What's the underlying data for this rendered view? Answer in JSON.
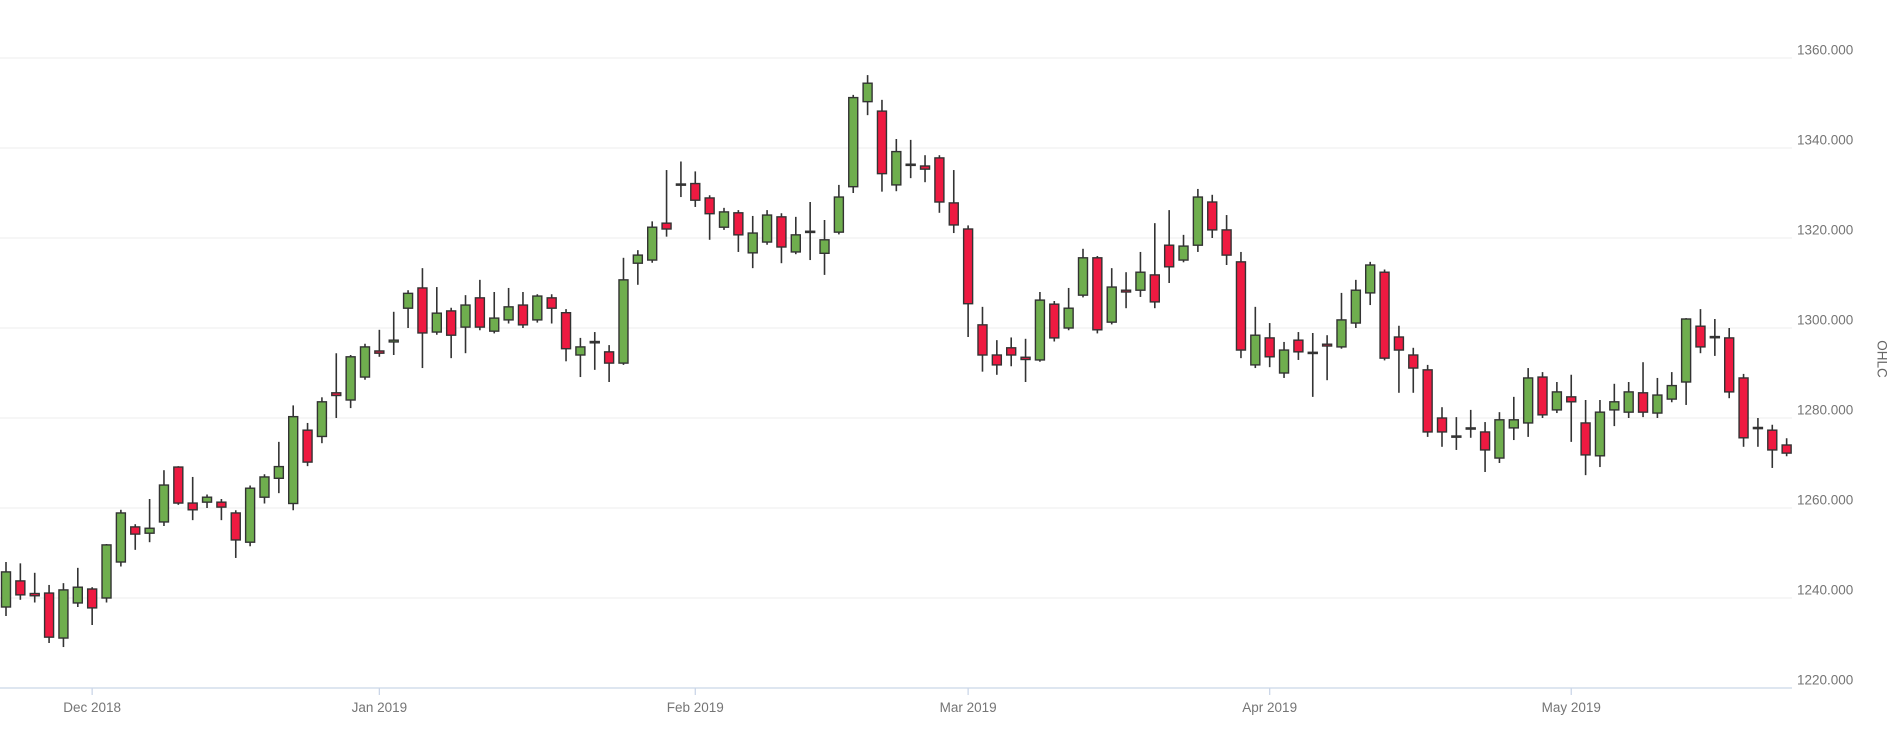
{
  "page": {
    "background": "#FFFFFF"
  },
  "chart": {
    "colors": {
      "up": "#6FAE4E",
      "down": "#EE1A41",
      "outline": "#333333",
      "grid": "#ECECEC",
      "axis_line": "#CBD6E8",
      "tick_text": "#757575",
      "axis_title_text": "#666666",
      "background": "#FFFFFF"
    }
  },
  "chart_data": {
    "type": "candlestick",
    "title": "",
    "xlabel": "",
    "ylabel": "OHLC",
    "grid": "horizontal-only",
    "legend": "none",
    "y_axis": {
      "side": "right",
      "min": 1220,
      "max": 1360,
      "tick_step": 20,
      "tick_labels": [
        "1220.000",
        "1240.000",
        "1260.000",
        "1280.000",
        "1300.000",
        "1320.000",
        "1340.000",
        "1360.000"
      ]
    },
    "x_axis": {
      "tick_labels": [
        "Dec 2018",
        "Jan 2019",
        "Feb 2019",
        "Mar 2019",
        "Apr 2019",
        "May 2019"
      ],
      "tick_candle_indices": [
        6,
        26,
        48,
        67,
        88,
        109
      ]
    },
    "candle_fields": [
      "date",
      "open",
      "high",
      "low",
      "close"
    ],
    "candles": [
      [
        "2018-11-23",
        1238.0,
        1248.0,
        1236.0,
        1245.8
      ],
      [
        "2018-11-26",
        1243.8,
        1247.7,
        1239.6,
        1240.7
      ],
      [
        "2018-11-27",
        1241.0,
        1245.6,
        1239.0,
        1240.5
      ],
      [
        "2018-11-28",
        1241.1,
        1242.9,
        1230.0,
        1231.3
      ],
      [
        "2018-11-29",
        1231.1,
        1243.3,
        1229.1,
        1241.8
      ],
      [
        "2018-11-30",
        1238.9,
        1246.7,
        1238.0,
        1242.4
      ],
      [
        "2018-12-03",
        1242.0,
        1242.4,
        1234.0,
        1237.8
      ],
      [
        "2018-12-04",
        1240.0,
        1252.0,
        1239.0,
        1251.8
      ],
      [
        "2018-12-05",
        1248.0,
        1259.6,
        1247.0,
        1258.9
      ],
      [
        "2018-12-06",
        1255.8,
        1256.4,
        1250.7,
        1254.2
      ],
      [
        "2018-12-07",
        1254.4,
        1262.0,
        1252.4,
        1255.5
      ],
      [
        "2018-12-10",
        1256.9,
        1268.4,
        1256.0,
        1265.1
      ],
      [
        "2018-12-11",
        1269.1,
        1269.3,
        1260.7,
        1261.1
      ],
      [
        "2018-12-12",
        1261.1,
        1266.9,
        1257.3,
        1259.6
      ],
      [
        "2018-12-13",
        1261.3,
        1263.0,
        1260.0,
        1262.4
      ],
      [
        "2018-12-14",
        1261.3,
        1262.0,
        1257.3,
        1260.2
      ],
      [
        "2018-12-17",
        1258.9,
        1259.5,
        1248.9,
        1252.9
      ],
      [
        "2018-12-18",
        1252.4,
        1265.0,
        1251.5,
        1264.4
      ],
      [
        "2018-12-19",
        1262.4,
        1267.5,
        1261.0,
        1266.9
      ],
      [
        "2018-12-20",
        1266.6,
        1274.7,
        1263.3,
        1269.2
      ],
      [
        "2018-12-21",
        1261.0,
        1282.8,
        1259.5,
        1280.3
      ],
      [
        "2018-12-24",
        1277.3,
        1278.9,
        1269.3,
        1270.2
      ],
      [
        "2018-12-26",
        1275.9,
        1284.6,
        1274.4,
        1283.6
      ],
      [
        "2018-12-27",
        1285.6,
        1294.4,
        1280.0,
        1285.0
      ],
      [
        "2018-12-28",
        1284.0,
        1294.0,
        1282.2,
        1293.6
      ],
      [
        "2018-12-31",
        1289.1,
        1296.5,
        1288.5,
        1295.8
      ],
      [
        "2019-01-02",
        1294.9,
        1299.6,
        1293.6,
        1294.4
      ],
      [
        "2019-01-03",
        1296.9,
        1303.6,
        1294.0,
        1297.3
      ],
      [
        "2019-01-04",
        1304.4,
        1308.4,
        1300.0,
        1307.7
      ],
      [
        "2019-01-07",
        1308.9,
        1313.3,
        1291.1,
        1298.9
      ],
      [
        "2019-01-08",
        1299.1,
        1309.1,
        1298.5,
        1303.3
      ],
      [
        "2019-01-09",
        1303.8,
        1304.5,
        1293.3,
        1298.4
      ],
      [
        "2019-01-10",
        1300.2,
        1307.3,
        1294.4,
        1305.1
      ],
      [
        "2019-01-11",
        1306.7,
        1310.7,
        1299.5,
        1300.2
      ],
      [
        "2019-01-14",
        1299.3,
        1308.0,
        1298.8,
        1302.2
      ],
      [
        "2019-01-15",
        1301.8,
        1308.9,
        1301.0,
        1304.7
      ],
      [
        "2019-01-16",
        1305.1,
        1308.0,
        1300.0,
        1300.7
      ],
      [
        "2019-01-17",
        1301.8,
        1307.5,
        1301.2,
        1307.1
      ],
      [
        "2019-01-18",
        1306.7,
        1307.5,
        1301.0,
        1304.4
      ],
      [
        "2019-01-21",
        1303.4,
        1304.2,
        1292.6,
        1295.4
      ],
      [
        "2019-01-22",
        1294.0,
        1297.8,
        1289.1,
        1295.8
      ],
      [
        "2019-01-23",
        1297.0,
        1299.1,
        1290.7,
        1296.7
      ],
      [
        "2019-01-24",
        1294.7,
        1296.2,
        1288.0,
        1292.2
      ],
      [
        "2019-01-25",
        1292.2,
        1315.6,
        1291.8,
        1310.7
      ],
      [
        "2019-01-28",
        1314.4,
        1317.3,
        1309.6,
        1316.2
      ],
      [
        "2019-01-29",
        1315.1,
        1323.7,
        1314.5,
        1322.4
      ],
      [
        "2019-01-30",
        1323.3,
        1335.1,
        1320.3,
        1322.0
      ],
      [
        "2019-01-31",
        1332.0,
        1337.0,
        1329.1,
        1331.8
      ],
      [
        "2019-02-01",
        1332.1,
        1334.8,
        1326.9,
        1328.4
      ],
      [
        "2019-02-04",
        1328.9,
        1329.5,
        1319.6,
        1325.4
      ],
      [
        "2019-02-05",
        1322.4,
        1326.7,
        1321.8,
        1325.8
      ],
      [
        "2019-02-06",
        1325.6,
        1326.2,
        1316.9,
        1320.7
      ],
      [
        "2019-02-07",
        1316.7,
        1324.9,
        1313.3,
        1321.1
      ],
      [
        "2019-02-08",
        1319.1,
        1326.2,
        1318.5,
        1325.1
      ],
      [
        "2019-02-11",
        1324.7,
        1325.5,
        1314.4,
        1318.0
      ],
      [
        "2019-02-12",
        1316.9,
        1324.7,
        1316.4,
        1320.7
      ],
      [
        "2019-02-13",
        1321.5,
        1328.0,
        1315.1,
        1321.3
      ],
      [
        "2019-02-14",
        1316.6,
        1324.0,
        1311.8,
        1319.6
      ],
      [
        "2019-02-15",
        1321.3,
        1331.8,
        1320.8,
        1329.1
      ],
      [
        "2019-02-19",
        1331.4,
        1351.8,
        1330.0,
        1351.2
      ],
      [
        "2019-02-20",
        1350.3,
        1356.2,
        1347.3,
        1354.4
      ],
      [
        "2019-02-21",
        1348.2,
        1350.7,
        1330.3,
        1334.3
      ],
      [
        "2019-02-22",
        1331.8,
        1342.0,
        1330.4,
        1339.2
      ],
      [
        "2019-02-25",
        1336.4,
        1341.8,
        1333.3,
        1336.2
      ],
      [
        "2019-02-26",
        1336.0,
        1338.4,
        1332.4,
        1335.3
      ],
      [
        "2019-02-27",
        1337.8,
        1338.4,
        1325.6,
        1328.0
      ],
      [
        "2019-02-28",
        1327.8,
        1335.1,
        1321.1,
        1322.9
      ],
      [
        "2019-03-01",
        1322.0,
        1322.8,
        1298.0,
        1305.4
      ],
      [
        "2019-03-04",
        1300.7,
        1304.7,
        1290.3,
        1294.0
      ],
      [
        "2019-03-05",
        1294.0,
        1297.3,
        1289.6,
        1291.8
      ],
      [
        "2019-03-06",
        1295.6,
        1297.9,
        1291.5,
        1294.0
      ],
      [
        "2019-03-07",
        1293.5,
        1297.6,
        1288.0,
        1293.0
      ],
      [
        "2019-03-08",
        1292.9,
        1308.0,
        1292.5,
        1306.2
      ],
      [
        "2019-03-11",
        1305.3,
        1306.0,
        1297.0,
        1297.8
      ],
      [
        "2019-03-12",
        1300.0,
        1308.9,
        1299.5,
        1304.4
      ],
      [
        "2019-03-13",
        1307.3,
        1317.6,
        1306.8,
        1315.6
      ],
      [
        "2019-03-14",
        1315.6,
        1316.0,
        1298.8,
        1299.6
      ],
      [
        "2019-03-15",
        1301.3,
        1313.3,
        1300.8,
        1309.1
      ],
      [
        "2019-03-18",
        1308.4,
        1312.4,
        1304.4,
        1308.0
      ],
      [
        "2019-03-19",
        1308.4,
        1316.9,
        1306.9,
        1312.4
      ],
      [
        "2019-03-20",
        1311.8,
        1323.3,
        1304.4,
        1305.8
      ],
      [
        "2019-03-21",
        1318.4,
        1326.2,
        1310.0,
        1313.6
      ],
      [
        "2019-03-22",
        1315.1,
        1320.7,
        1314.6,
        1318.2
      ],
      [
        "2019-03-25",
        1318.4,
        1330.9,
        1316.9,
        1329.1
      ],
      [
        "2019-03-26",
        1328.0,
        1329.6,
        1320.0,
        1321.8
      ],
      [
        "2019-03-27",
        1321.8,
        1325.1,
        1314.0,
        1316.2
      ],
      [
        "2019-03-28",
        1314.7,
        1316.9,
        1293.3,
        1295.1
      ],
      [
        "2019-03-29",
        1291.8,
        1304.7,
        1291.1,
        1298.4
      ],
      [
        "2019-04-01",
        1297.8,
        1301.1,
        1291.3,
        1293.6
      ],
      [
        "2019-04-02",
        1290.0,
        1296.9,
        1288.9,
        1295.1
      ],
      [
        "2019-04-03",
        1297.3,
        1299.1,
        1292.9,
        1294.7
      ],
      [
        "2019-04-04",
        1294.6,
        1298.9,
        1284.7,
        1294.4
      ],
      [
        "2019-04-05",
        1296.4,
        1298.4,
        1288.4,
        1296.0
      ],
      [
        "2019-04-08",
        1295.8,
        1307.8,
        1295.4,
        1301.8
      ],
      [
        "2019-04-09",
        1301.1,
        1310.7,
        1300.0,
        1308.4
      ],
      [
        "2019-04-10",
        1307.8,
        1314.7,
        1305.1,
        1314.0
      ],
      [
        "2019-04-11",
        1312.4,
        1313.0,
        1292.8,
        1293.3
      ],
      [
        "2019-04-12",
        1298.0,
        1300.5,
        1285.6,
        1295.1
      ],
      [
        "2019-04-15",
        1294.0,
        1295.6,
        1285.6,
        1291.1
      ],
      [
        "2019-04-16",
        1290.7,
        1291.8,
        1275.8,
        1276.9
      ],
      [
        "2019-04-17",
        1280.0,
        1282.4,
        1273.6,
        1276.9
      ],
      [
        "2019-04-18",
        1276.0,
        1280.2,
        1272.9,
        1275.8
      ],
      [
        "2019-04-22",
        1277.7,
        1281.8,
        1275.6,
        1277.8
      ],
      [
        "2019-04-23",
        1276.9,
        1279.1,
        1268.0,
        1272.9
      ],
      [
        "2019-04-24",
        1271.1,
        1281.3,
        1270.0,
        1279.6
      ],
      [
        "2019-04-25",
        1277.8,
        1284.7,
        1275.1,
        1279.6
      ],
      [
        "2019-04-26",
        1278.9,
        1291.1,
        1275.8,
        1288.9
      ],
      [
        "2019-04-29",
        1289.1,
        1290.2,
        1280.0,
        1280.7
      ],
      [
        "2019-04-30",
        1281.8,
        1288.0,
        1281.1,
        1285.8
      ],
      [
        "2019-05-01",
        1284.7,
        1289.6,
        1274.7,
        1283.6
      ],
      [
        "2019-05-02",
        1278.9,
        1284.0,
        1267.3,
        1271.8
      ],
      [
        "2019-05-03",
        1271.6,
        1284.0,
        1269.1,
        1281.3
      ],
      [
        "2019-05-06",
        1281.8,
        1287.6,
        1278.2,
        1283.6
      ],
      [
        "2019-05-07",
        1281.3,
        1288.0,
        1280.0,
        1285.8
      ],
      [
        "2019-05-08",
        1285.6,
        1292.4,
        1280.2,
        1281.3
      ],
      [
        "2019-05-09",
        1281.1,
        1288.9,
        1280.0,
        1285.1
      ],
      [
        "2019-05-10",
        1284.2,
        1290.2,
        1283.5,
        1287.2
      ],
      [
        "2019-05-13",
        1288.0,
        1302.2,
        1282.9,
        1302.0
      ],
      [
        "2019-05-14",
        1300.4,
        1304.2,
        1294.4,
        1295.8
      ],
      [
        "2019-05-15",
        1298.1,
        1302.0,
        1293.8,
        1298.0
      ],
      [
        "2019-05-16",
        1297.8,
        1300.0,
        1284.4,
        1285.8
      ],
      [
        "2019-05-17",
        1288.9,
        1289.8,
        1273.6,
        1275.6
      ],
      [
        "2019-05-20",
        1277.9,
        1280.0,
        1273.6,
        1277.8
      ],
      [
        "2019-05-21",
        1277.3,
        1278.5,
        1268.9,
        1272.9
      ],
      [
        "2019-05-22",
        1274.0,
        1275.5,
        1271.5,
        1272.2
      ]
    ]
  }
}
